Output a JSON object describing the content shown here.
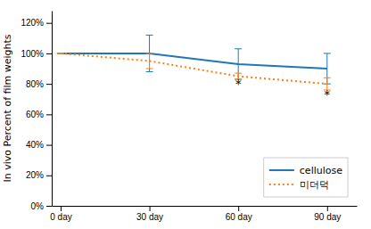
{
  "chart_data": {
    "type": "line",
    "ylabel": "In vivo Percent of film weights",
    "x": [
      0,
      30,
      60,
      90
    ],
    "series": [
      {
        "name": "cellulose",
        "values": [
          100,
          100,
          93,
          90
        ],
        "errors": [
          0,
          12,
          10,
          10
        ],
        "line_style": "solid"
      },
      {
        "name": "미더덕",
        "values": [
          100,
          95,
          85,
          80
        ],
        "errors": [
          0,
          5,
          2,
          4
        ],
        "line_style": "dotted"
      }
    ],
    "xlim": [
      -3,
      100
    ],
    "xticks": [
      {
        "value": 0,
        "label": "0 day"
      },
      {
        "value": 30,
        "label": "30 day"
      },
      {
        "value": 60,
        "label": "60 day"
      },
      {
        "value": 90,
        "label": "90 day"
      }
    ],
    "ylim": [
      0,
      128
    ],
    "yticks": [
      {
        "value": 0,
        "label": "0%"
      },
      {
        "value": 20,
        "label": "20%"
      },
      {
        "value": 40,
        "label": "40%"
      },
      {
        "value": 60,
        "label": "60%"
      },
      {
        "value": 80,
        "label": "80%"
      },
      {
        "value": 100,
        "label": "100%"
      },
      {
        "value": 120,
        "label": "120%"
      }
    ],
    "annotations": [
      {
        "text": "*",
        "x": 60,
        "y": 80
      },
      {
        "text": "*",
        "x": 90,
        "y": 73
      }
    ],
    "grid": false,
    "legend": "lower right"
  }
}
